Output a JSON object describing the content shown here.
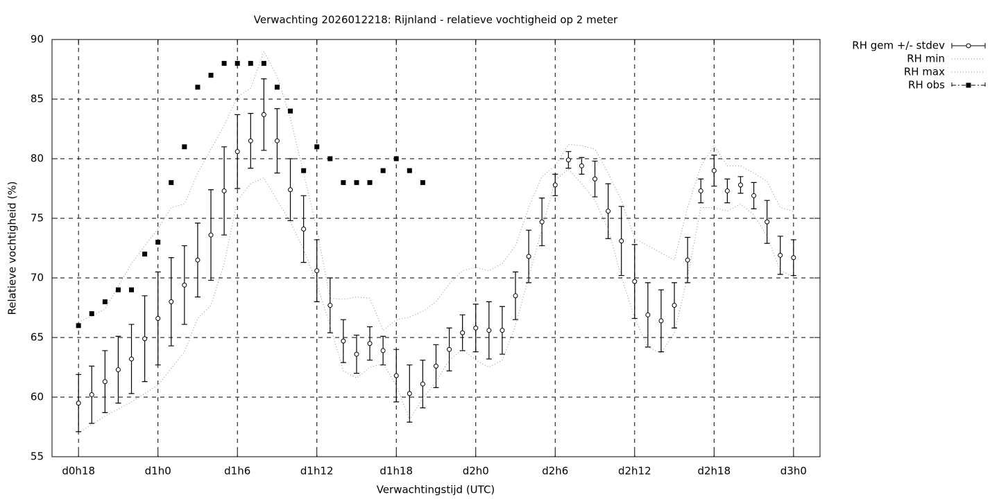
{
  "chart_data": {
    "type": "line",
    "title": "Verwachting 2026012218: Rijnland - relatieve vochtigheid op 2 meter",
    "x_label": "Verwachtingstijd (UTC)",
    "y_label": "Relatieve vochtigheid (%)",
    "x": [
      0,
      1,
      2,
      3,
      4,
      5,
      6,
      7,
      8,
      9,
      10,
      11,
      12,
      13,
      14,
      15,
      16,
      17,
      18,
      19,
      20,
      21,
      22,
      23,
      24,
      25,
      26,
      27,
      28,
      29,
      30,
      31,
      32,
      33,
      34,
      35,
      36,
      37,
      38,
      39,
      40,
      41,
      42,
      43,
      44,
      45,
      46,
      47,
      48,
      49,
      50,
      51,
      52,
      53,
      54
    ],
    "xlim": [
      -2,
      56
    ],
    "xticks": [
      {
        "value": 0,
        "label": "d0h18"
      },
      {
        "value": 6,
        "label": "d1h0"
      },
      {
        "value": 12,
        "label": "d1h6"
      },
      {
        "value": 18,
        "label": "d1h12"
      },
      {
        "value": 24,
        "label": "d1h18"
      },
      {
        "value": 30,
        "label": "d2h0"
      },
      {
        "value": 36,
        "label": "d2h6"
      },
      {
        "value": 42,
        "label": "d2h12"
      },
      {
        "value": 48,
        "label": "d2h18"
      },
      {
        "value": 54,
        "label": "d3h0"
      }
    ],
    "ylim": [
      55,
      90
    ],
    "yticks": [
      55,
      60,
      65,
      70,
      75,
      80,
      85,
      90
    ],
    "grid": true,
    "legend": "outside-top-right",
    "series": [
      {
        "name": "RH gem +/- stdev",
        "color": "#000000",
        "style": "errorbar",
        "values": [
          59.5,
          60.2,
          61.3,
          62.3,
          63.2,
          64.9,
          66.6,
          68.0,
          69.4,
          71.5,
          73.6,
          77.3,
          80.6,
          81.5,
          83.7,
          81.5,
          77.4,
          74.1,
          70.6,
          67.7,
          64.7,
          63.6,
          64.5,
          63.9,
          61.8,
          60.3,
          61.1,
          62.6,
          64.0,
          65.4,
          65.8,
          65.6,
          65.6,
          68.5,
          71.8,
          74.7,
          77.8,
          79.9,
          79.4,
          78.3,
          75.6,
          73.1,
          69.7,
          66.9,
          66.4,
          67.7,
          71.5,
          77.3,
          79.0,
          77.3,
          77.8,
          76.9,
          74.7,
          71.9,
          71.7
        ],
        "errors": [
          2.4,
          2.4,
          2.6,
          2.8,
          2.9,
          3.6,
          3.9,
          3.7,
          3.3,
          3.1,
          3.8,
          3.7,
          3.1,
          2.3,
          3.0,
          2.7,
          2.6,
          2.8,
          2.6,
          2.3,
          1.8,
          1.6,
          1.4,
          1.2,
          2.2,
          2.4,
          2.0,
          1.8,
          1.8,
          1.5,
          2.0,
          2.4,
          2.0,
          2.0,
          2.2,
          2.0,
          0.9,
          0.7,
          0.7,
          1.5,
          2.3,
          2.9,
          3.1,
          2.7,
          2.6,
          1.9,
          1.9,
          1.0,
          1.3,
          1.0,
          0.7,
          1.1,
          1.8,
          1.6,
          1.5
        ]
      },
      {
        "name": "RH min",
        "color": "#888888",
        "style": "dotted",
        "values": [
          57.0,
          57.7,
          58.4,
          59.0,
          59.6,
          60.3,
          61.0,
          62.4,
          63.8,
          66.6,
          67.7,
          71.2,
          76.5,
          77.9,
          78.4,
          76.5,
          74.7,
          72.4,
          69.5,
          66.0,
          62.2,
          61.6,
          62.5,
          62.8,
          61.0,
          58.1,
          59.9,
          61.3,
          63.1,
          64.0,
          63.1,
          62.5,
          63.1,
          66.0,
          70.1,
          74.1,
          78.2,
          79.1,
          77.9,
          76.5,
          74.1,
          70.1,
          66.6,
          64.2,
          63.7,
          65.4,
          70.1,
          75.9,
          75.9,
          75.6,
          76.2,
          75.3,
          73.5,
          70.6,
          70.1
        ]
      },
      {
        "name": "RH max",
        "color": "#888888",
        "style": "dotted",
        "values": [
          66.3,
          66.8,
          67.4,
          69.3,
          71.2,
          72.7,
          74.1,
          75.9,
          76.2,
          78.8,
          80.8,
          82.8,
          85.2,
          85.9,
          89.0,
          86.9,
          83.4,
          78.8,
          74.1,
          68.3,
          68.2,
          68.4,
          68.3,
          65.6,
          66.5,
          66.7,
          67.2,
          68.0,
          69.5,
          70.6,
          70.9,
          70.6,
          71.2,
          72.7,
          75.9,
          78.5,
          79.4,
          81.2,
          81.1,
          80.8,
          78.8,
          76.5,
          73.3,
          72.7,
          72.1,
          71.5,
          75.9,
          79.4,
          81.1,
          79.4,
          79.4,
          78.8,
          78.1,
          75.9,
          75.6
        ]
      },
      {
        "name": "RH obs",
        "color": "#000000",
        "style": "points",
        "values": [
          66,
          67,
          68,
          69,
          69,
          72,
          73,
          78,
          81,
          86,
          87,
          88,
          88,
          88,
          88,
          86,
          84,
          79,
          81,
          80,
          78,
          78,
          78,
          79,
          80,
          79,
          78,
          null,
          null,
          null,
          null,
          null,
          null,
          null,
          null,
          null,
          null,
          null,
          null,
          null,
          null,
          null,
          null,
          null,
          null,
          null,
          null,
          null,
          null,
          null,
          null,
          null,
          null,
          null,
          null
        ]
      }
    ]
  }
}
